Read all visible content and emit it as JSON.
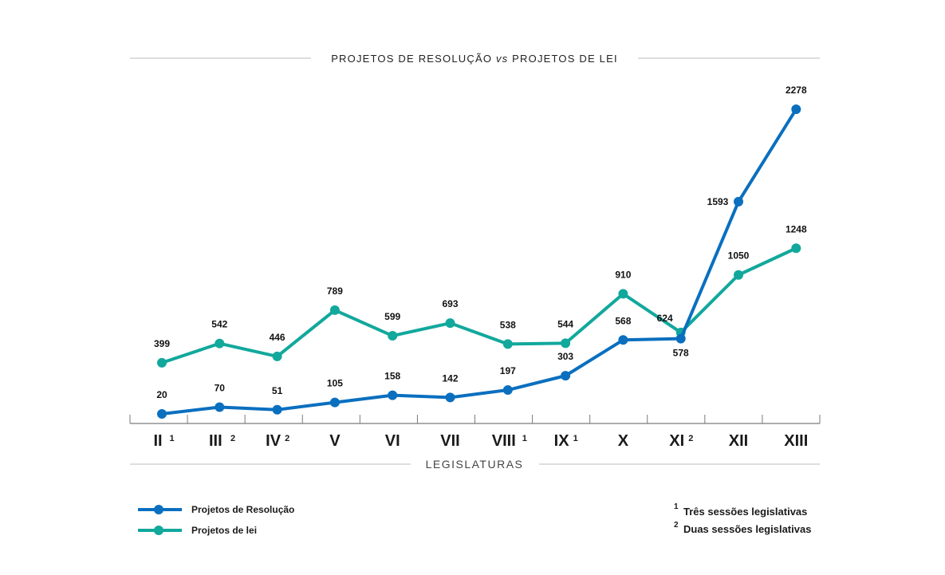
{
  "chart_data": {
    "type": "line",
    "title_part1": "PROJETOS DE RESOLUÇÃO",
    "title_vs": "vs",
    "title_part2": "PROJETOS DE LEI",
    "xlabel": "LEGISLATURAS",
    "ylabel": "",
    "ylim": [
      0,
      2400
    ],
    "grid": false,
    "categories": [
      "II",
      "III",
      "IV",
      "V",
      "VI",
      "VII",
      "VIII",
      "IX",
      "X",
      "XI",
      "XII",
      "XIII"
    ],
    "category_notes": [
      "1",
      "2",
      "2",
      "",
      "",
      "",
      "1",
      "1",
      "",
      "2",
      "",
      ""
    ],
    "series": [
      {
        "name": "Projetos de Resolução",
        "color": "#0a6fbf",
        "values": [
          20,
          70,
          51,
          105,
          158,
          142,
          197,
          303,
          568,
          578,
          1593,
          2278
        ]
      },
      {
        "name": "Projetos de lei",
        "color": "#12a89c",
        "values": [
          399,
          542,
          446,
          789,
          599,
          693,
          538,
          544,
          910,
          624,
          1050,
          1248
        ]
      }
    ],
    "legend_position": "bottom-left",
    "notes": [
      {
        "mark": "1",
        "text": "Três sessões legislativas"
      },
      {
        "mark": "2",
        "text": "Duas sessões legislativas"
      }
    ]
  }
}
